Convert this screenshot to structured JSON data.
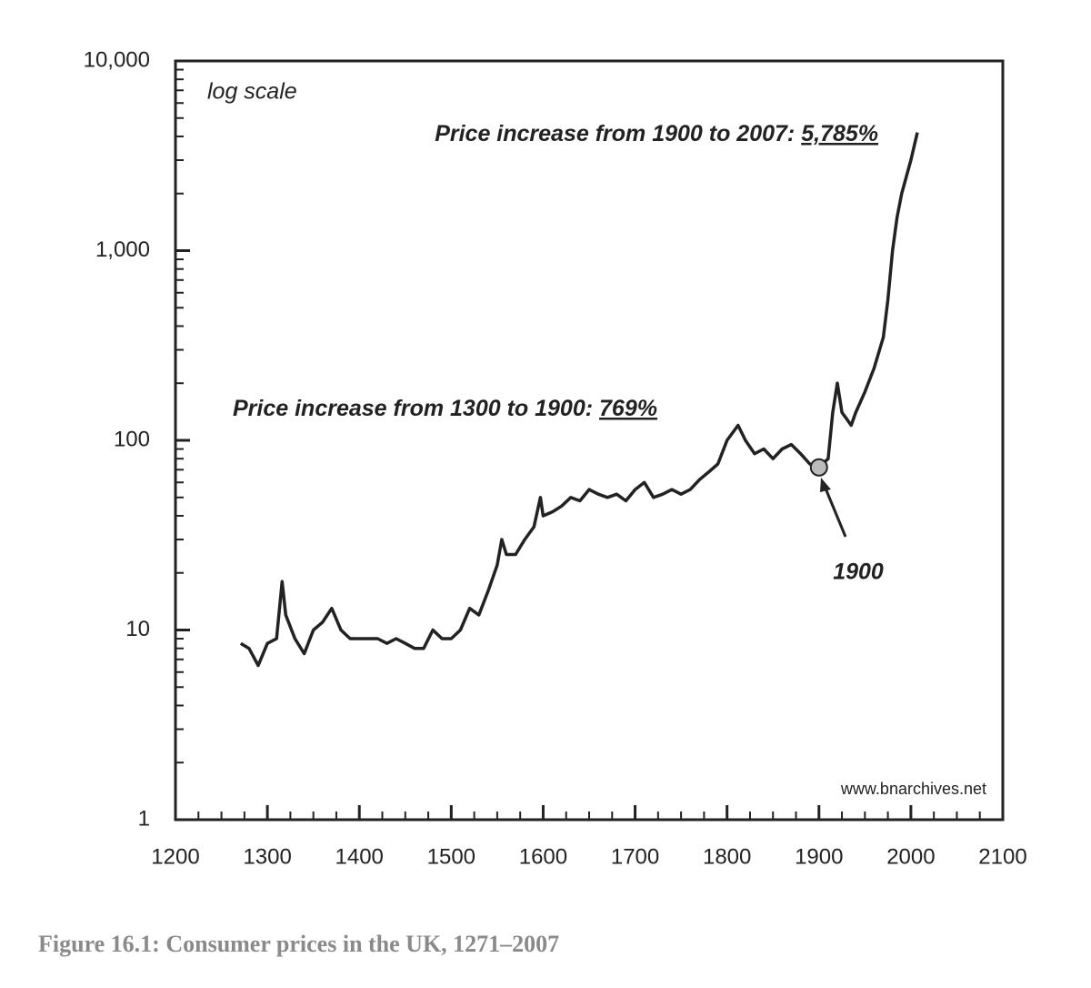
{
  "chart_data": {
    "type": "line",
    "caption": "Figure 16.1: Consumer prices in the UK, 1271–2007",
    "scale_note": "log scale",
    "source": "www.bnarchives.net",
    "annotations": [
      {
        "text": "Price increase from 1900 to 2007:",
        "value_text": "5,785%"
      },
      {
        "text": "Price increase from 1300 to 1900:",
        "value_text": "769%"
      }
    ],
    "highlight": {
      "x": 1900,
      "y": 72,
      "label": "1900"
    },
    "log_y": true,
    "xlim": [
      1200,
      2100
    ],
    "xticks": [
      1200,
      1300,
      1400,
      1500,
      1600,
      1700,
      1800,
      1900,
      2000,
      2100
    ],
    "minor_xticks": [
      1225,
      1250,
      1275,
      1325,
      1350,
      1375,
      1425,
      1450,
      1475,
      1525,
      1550,
      1575,
      1625,
      1650,
      1675,
      1725,
      1750,
      1775,
      1825,
      1850,
      1875,
      1925,
      1950,
      1975,
      2025,
      2050,
      2075
    ],
    "ylim": [
      1,
      10000
    ],
    "yticks": [
      1,
      10,
      100,
      {
        "value": 1000,
        "label": "1,000"
      },
      {
        "value": 10000,
        "label": "10,000"
      }
    ],
    "minor_yticks": [
      2,
      3,
      4,
      5,
      6,
      7,
      8,
      9,
      20,
      30,
      40,
      50,
      60,
      70,
      80,
      90,
      200,
      300,
      400,
      500,
      600,
      700,
      800,
      900,
      2000,
      3000,
      4000,
      5000,
      6000,
      7000,
      8000,
      9000
    ],
    "series": [
      {
        "name": "Consumer prices",
        "color": "#222222",
        "x": [
          1271,
          1280,
          1290,
          1300,
          1310,
          1316,
          1320,
          1330,
          1340,
          1350,
          1360,
          1370,
          1380,
          1390,
          1400,
          1410,
          1420,
          1430,
          1440,
          1450,
          1460,
          1470,
          1480,
          1490,
          1500,
          1510,
          1520,
          1530,
          1540,
          1550,
          1555,
          1560,
          1570,
          1580,
          1590,
          1597,
          1600,
          1610,
          1620,
          1630,
          1640,
          1650,
          1660,
          1670,
          1680,
          1690,
          1700,
          1710,
          1720,
          1730,
          1740,
          1750,
          1760,
          1770,
          1780,
          1790,
          1800,
          1812,
          1820,
          1830,
          1840,
          1850,
          1860,
          1870,
          1880,
          1890,
          1900,
          1910,
          1915,
          1920,
          1925,
          1930,
          1935,
          1940,
          1950,
          1960,
          1970,
          1975,
          1980,
          1985,
          1990,
          2000,
          2007
        ],
        "values": [
          8.5,
          8,
          6.5,
          8.5,
          9,
          18,
          12,
          9,
          7.5,
          10,
          11,
          13,
          10,
          9,
          9,
          9,
          9,
          8.5,
          9,
          8.5,
          8,
          8,
          10,
          9,
          9,
          10,
          13,
          12,
          16,
          22,
          30,
          25,
          25,
          30,
          35,
          50,
          40,
          42,
          45,
          50,
          48,
          55,
          52,
          50,
          52,
          48,
          55,
          60,
          50,
          52,
          55,
          52,
          55,
          62,
          68,
          75,
          100,
          120,
          100,
          85,
          90,
          80,
          90,
          95,
          85,
          75,
          72,
          80,
          140,
          200,
          140,
          130,
          120,
          140,
          180,
          240,
          350,
          550,
          1000,
          1500,
          2000,
          3000,
          4200
        ]
      }
    ]
  }
}
